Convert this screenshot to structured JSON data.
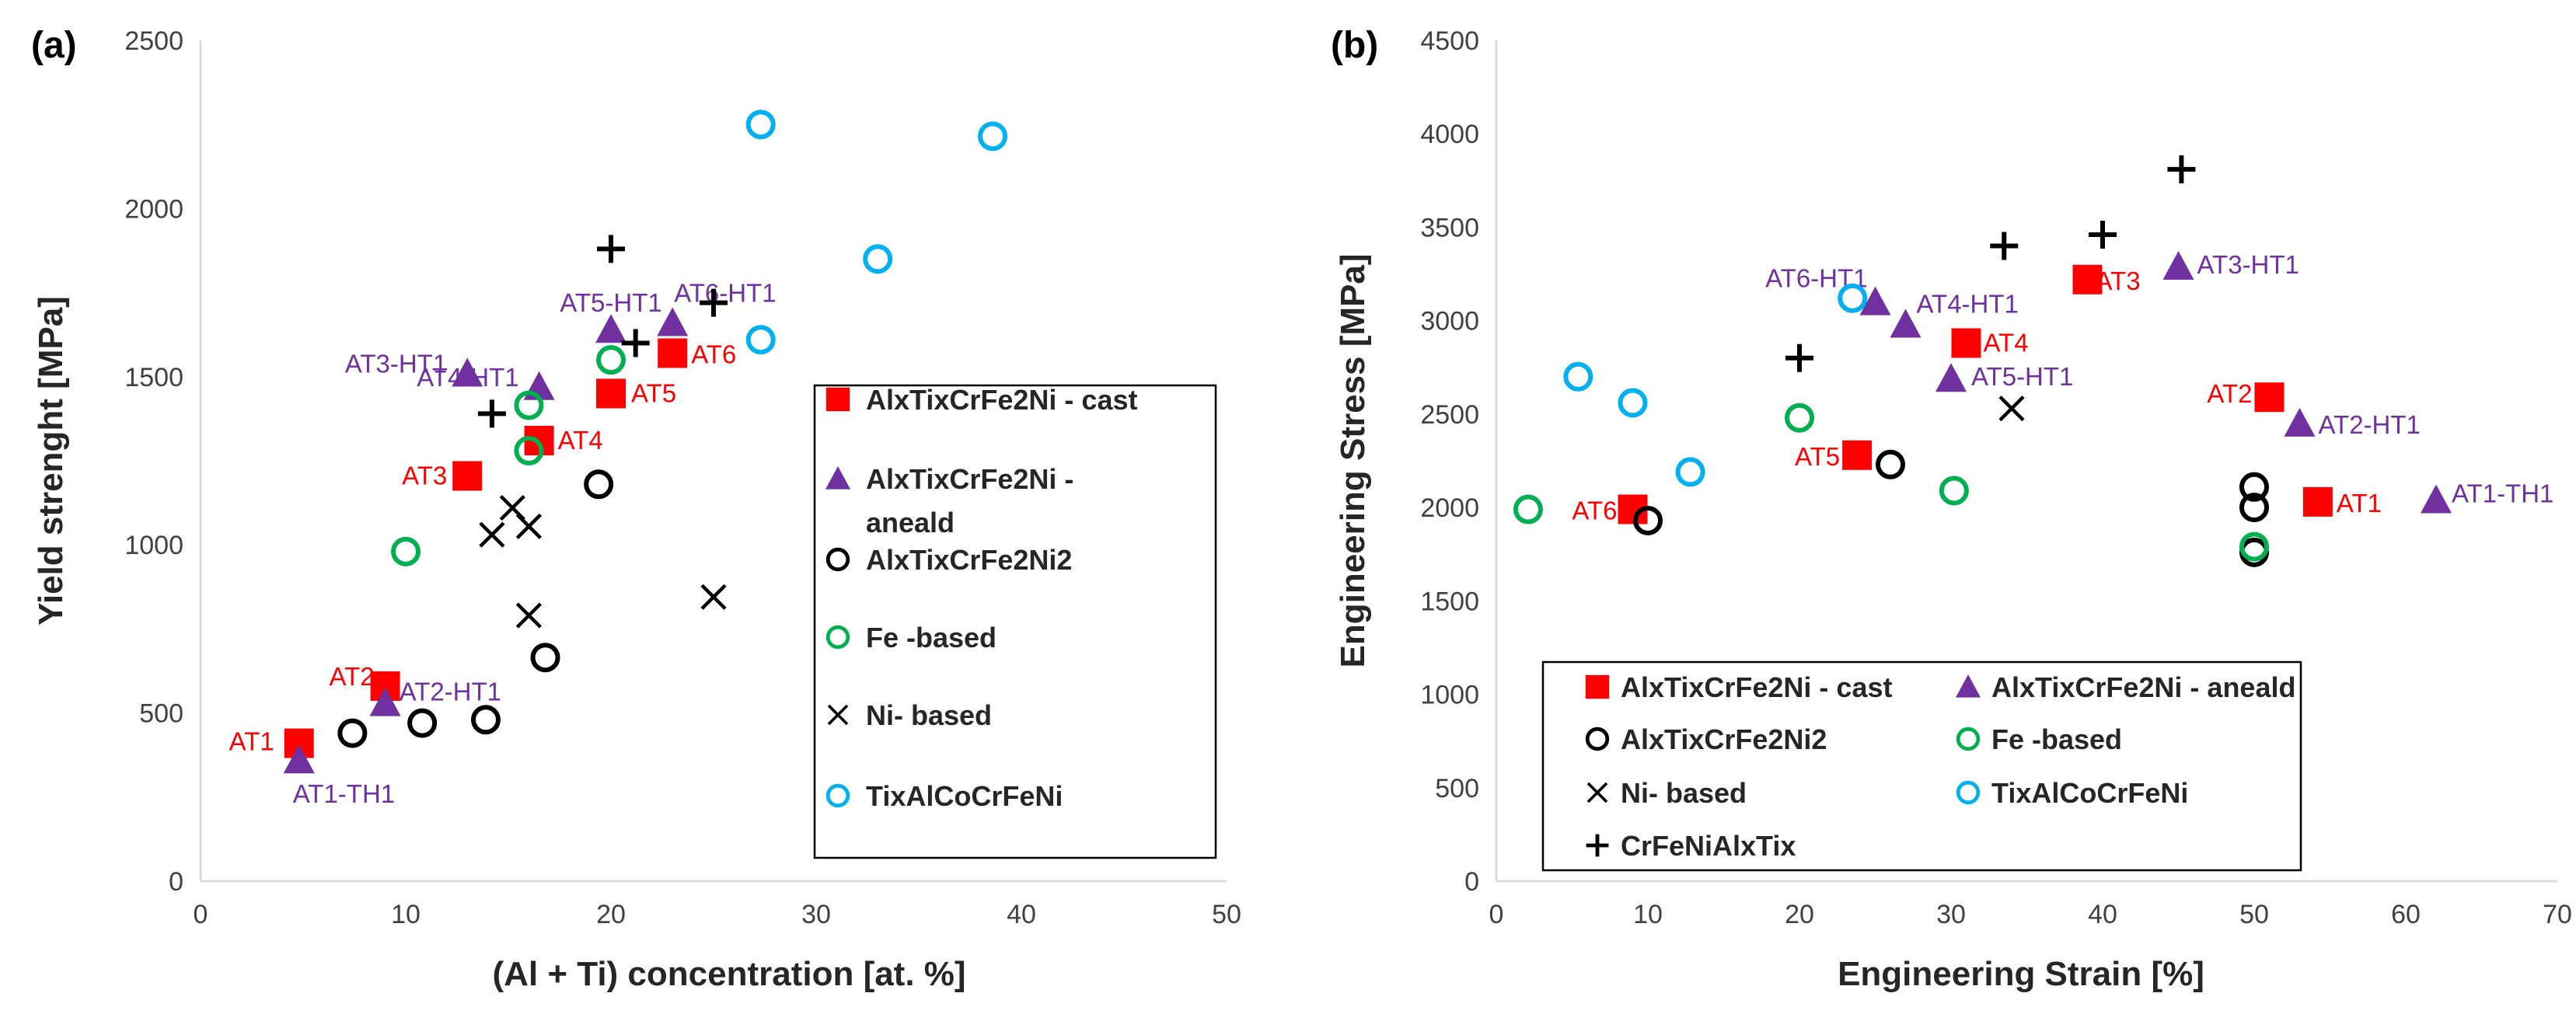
{
  "colors": {
    "cast": "#ff0000",
    "aneald": "#7030a0",
    "ni2": "#000000",
    "fe": "#00b050",
    "ni": "#000000",
    "tix": "#00b0f0",
    "crfeni": "#000000",
    "label_cast": "#ff0000",
    "label_aneald": "#7030a0",
    "axis": "#d9d9d9"
  },
  "chart_data": [
    {
      "id": "a",
      "type": "scatter",
      "panel_label": "(a)",
      "xlabel": "(Al + Ti) concentration [at. %]",
      "ylabel": "Yield strenght  [MPa]",
      "xlim": [
        0,
        50
      ],
      "ylim": [
        0,
        2500
      ],
      "xticks": [
        0,
        10,
        20,
        30,
        40,
        50
      ],
      "yticks": [
        0,
        500,
        1000,
        1500,
        2000,
        2500
      ],
      "series": [
        {
          "key": "cast",
          "name": "AlxTixCrFe2Ni - cast",
          "marker": "square",
          "points": [
            [
              4.8,
              410
            ],
            [
              9,
              580
            ],
            [
              13,
              1205
            ],
            [
              16.5,
              1310
            ],
            [
              20,
              1450
            ],
            [
              23,
              1570
            ]
          ],
          "labels": [
            "AT1",
            "AT2",
            "AT3",
            "AT4",
            "AT5",
            "AT6"
          ]
        },
        {
          "key": "aneald",
          "name": "AlxTixCrFe2Ni - aneald",
          "marker": "triangle",
          "points": [
            [
              4.8,
              360
            ],
            [
              9,
              530
            ],
            [
              13,
              1510
            ],
            [
              16.5,
              1470
            ],
            [
              20,
              1640
            ],
            [
              23,
              1660
            ]
          ],
          "labels": [
            "AT1-TH1",
            "AT2-HT1",
            "AT3-HT1",
            "AT4-HT1",
            "AT5-HT1",
            "AT6-HT1"
          ]
        },
        {
          "key": "ni2",
          "name": "AlxTixCrFe2Ni2",
          "marker": "circle",
          "points": [
            [
              7.4,
              440
            ],
            [
              10.8,
              470
            ],
            [
              13.9,
              480
            ],
            [
              16.8,
              665
            ],
            [
              19.4,
              1180
            ]
          ]
        },
        {
          "key": "fe",
          "name": "Fe -based",
          "marker": "circle",
          "points": [
            [
              10,
              980
            ],
            [
              16,
              1280
            ],
            [
              16,
              1415
            ],
            [
              20,
              1550
            ]
          ]
        },
        {
          "key": "ni",
          "name": "Ni- based",
          "marker": "x",
          "points": [
            [
              14.2,
              1030
            ],
            [
              15.2,
              1110
            ],
            [
              16,
              1055
            ],
            [
              16,
              790
            ],
            [
              25,
              845
            ]
          ]
        },
        {
          "key": "tix",
          "name": "TixAlCoCrFeNi",
          "marker": "circle",
          "points": [
            [
              27.3,
              2250
            ],
            [
              38.6,
              2215
            ],
            [
              33,
              1850
            ],
            [
              27.3,
              1610
            ]
          ]
        },
        {
          "key": "crfeni",
          "name": "CrFeNiAlxTix",
          "marker": "plus",
          "points": [
            [
              14.2,
              1390
            ],
            [
              20,
              1880
            ],
            [
              21.2,
              1600
            ],
            [
              25,
              1720
            ]
          ]
        }
      ],
      "legend_keys": [
        "cast",
        "aneald",
        "ni2",
        "fe",
        "ni",
        "tix"
      ],
      "legend_layout": "single-column, right-middle"
    },
    {
      "id": "b",
      "type": "scatter",
      "panel_label": "(b)",
      "xlabel": "Engineering  Strain  [%]",
      "ylabel": "Engineering  Stress  [MPa]",
      "xlim": [
        0,
        70
      ],
      "ylim": [
        0,
        4500
      ],
      "xticks": [
        0,
        10,
        20,
        30,
        40,
        50,
        60,
        70
      ],
      "yticks": [
        0,
        500,
        1000,
        1500,
        2000,
        2500,
        3000,
        3500,
        4000,
        4500
      ],
      "series": [
        {
          "key": "cast",
          "name": "AlxTixCrFe2Ni - cast",
          "marker": "square",
          "points": [
            [
              54.2,
              2030
            ],
            [
              51,
              2590
            ],
            [
              39,
              3220
            ],
            [
              31,
              2880
            ],
            [
              23.8,
              2280
            ],
            [
              9,
              1990
            ]
          ],
          "labels": [
            "AT1",
            "AT2",
            "AT3",
            "AT4",
            "AT5",
            "AT6"
          ]
        },
        {
          "key": "aneald",
          "name": "AlxTixCrFe2Ni - aneald",
          "marker": "triangle",
          "points": [
            [
              62,
              2040
            ],
            [
              53,
              2450
            ],
            [
              45,
              3290
            ],
            [
              27,
              2980
            ],
            [
              30,
              2690
            ],
            [
              25,
              3100
            ]
          ],
          "labels": [
            "AT1-TH1",
            "AT2-HT1",
            "AT3-HT1",
            "AT4-HT1",
            "AT5-HT1",
            "AT6-HT1"
          ]
        },
        {
          "key": "ni2",
          "name": "AlxTixCrFe2Ni2",
          "marker": "circle",
          "points": [
            [
              10,
              1930
            ],
            [
              26,
              2230
            ],
            [
              50,
              2110
            ],
            [
              50,
              2000
            ],
            [
              50,
              1760
            ]
          ]
        },
        {
          "key": "fe",
          "name": "Fe -based",
          "marker": "circle",
          "points": [
            [
              2.1,
              1990
            ],
            [
              20,
              2480
            ],
            [
              30.2,
              2090
            ],
            [
              50,
              1790
            ]
          ]
        },
        {
          "key": "ni",
          "name": "Ni- based",
          "marker": "x",
          "points": [
            [
              34,
              2530
            ]
          ]
        },
        {
          "key": "tix",
          "name": "TixAlCoCrFeNi",
          "marker": "circle",
          "points": [
            [
              5.4,
              2700
            ],
            [
              9,
              2560
            ],
            [
              12.8,
              2190
            ],
            [
              23.5,
              3120
            ]
          ]
        },
        {
          "key": "crfeni",
          "name": "CrFeNiAlxTix",
          "marker": "plus",
          "points": [
            [
              20,
              2800
            ],
            [
              33.5,
              3400
            ],
            [
              40,
              3460
            ],
            [
              45.2,
              3810
            ]
          ]
        }
      ],
      "legend_keys": [
        "cast",
        "aneald",
        "ni2",
        "fe",
        "ni",
        "tix",
        "crfeni"
      ],
      "legend_layout": "two-column, bottom"
    }
  ]
}
